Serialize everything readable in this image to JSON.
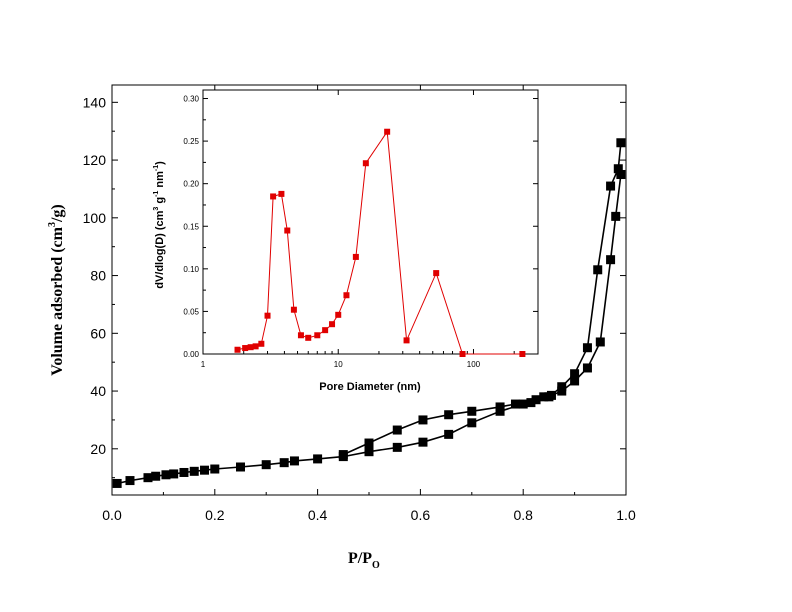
{
  "chart_data": [
    {
      "type": "line",
      "xlabel_main": "P/P",
      "xlabel_sub": "O",
      "ylabel_a": "Volume adsorbed  (cm",
      "ylabel_sup": "3",
      "ylabel_b": "/g)",
      "xlim": [
        0,
        1.0
      ],
      "ylim": [
        4,
        146
      ],
      "x_ticks": [
        "0.0",
        "0.2",
        "0.4",
        "0.6",
        "0.8",
        "1.0"
      ],
      "x_tick_values": [
        0,
        0.2,
        0.4,
        0.6,
        0.8,
        1.0
      ],
      "y_ticks": [
        "20",
        "40",
        "60",
        "80",
        "100",
        "120",
        "140"
      ],
      "y_tick_values": [
        20,
        40,
        60,
        80,
        100,
        120,
        140
      ],
      "marker_color": "#000000",
      "series": [
        {
          "x": [
            0.01,
            0.035,
            0.07,
            0.085,
            0.105,
            0.12,
            0.14,
            0.16,
            0.18,
            0.2,
            0.25,
            0.3,
            0.335,
            0.355,
            0.4,
            0.45,
            0.5,
            0.555,
            0.605,
            0.655,
            0.7,
            0.755,
            0.8,
            0.825,
            0.84,
            0.855,
            0.875,
            0.9,
            0.925,
            0.95,
            0.97,
            0.98,
            0.99
          ],
          "y": [
            8,
            9,
            10,
            10.5,
            11,
            11.3,
            11.8,
            12.2,
            12.6,
            13,
            13.7,
            14.5,
            15.2,
            15.8,
            16.5,
            17.3,
            19,
            20.5,
            22.3,
            25,
            29,
            33,
            35.5,
            37,
            38,
            38.5,
            40,
            43.5,
            48,
            57,
            85.5,
            100.5,
            115
          ]
        },
        {
          "x": [
            0.99,
            0.985,
            0.97,
            0.945,
            0.925,
            0.9,
            0.875,
            0.85,
            0.815,
            0.785,
            0.755,
            0.7,
            0.655,
            0.605,
            0.555,
            0.5,
            0.45
          ],
          "y": [
            126,
            117,
            111,
            82,
            55,
            46,
            41.5,
            38,
            36,
            35.5,
            34.5,
            33,
            31.8,
            30,
            26.5,
            22,
            18
          ]
        }
      ]
    },
    {
      "type": "line",
      "xlabel": "Pore Diameter (nm)",
      "ylabel_a": "dV/dlog(D)  (cm",
      "ylabel_sup1": "3",
      "ylabel_b": " g",
      "ylabel_sup2": "-1",
      "ylabel_c": " nm",
      "ylabel_sup3": "-1",
      "ylabel_d": ")",
      "x_scale": "log",
      "xlim": [
        1,
        300
      ],
      "ylim": [
        0,
        0.31
      ],
      "x_ticks": [
        "1",
        "10",
        "100"
      ],
      "x_tick_values": [
        1,
        10,
        100
      ],
      "y_ticks": [
        "0.00",
        "0.05",
        "0.10",
        "0.15",
        "0.20",
        "0.25",
        "0.30"
      ],
      "y_tick_values": [
        0,
        0.05,
        0.1,
        0.15,
        0.2,
        0.25,
        0.3
      ],
      "marker_color": "#e00000",
      "series": [
        {
          "x": [
            1.8,
            2.05,
            2.25,
            2.45,
            2.7,
            3.0,
            3.3,
            3.8,
            4.2,
            4.7,
            5.3,
            6.0,
            7.0,
            8.0,
            9.0,
            10.0,
            11.5,
            13.5,
            16.0,
            23.0,
            32.0,
            53.0,
            83.0,
            230.0
          ],
          "y": [
            0.005,
            0.007,
            0.008,
            0.009,
            0.012,
            0.045,
            0.185,
            0.188,
            0.145,
            0.052,
            0.022,
            0.019,
            0.022,
            0.028,
            0.035,
            0.046,
            0.069,
            0.114,
            0.224,
            0.261,
            0.016,
            0.095,
            0.0,
            0.0
          ]
        }
      ]
    }
  ]
}
